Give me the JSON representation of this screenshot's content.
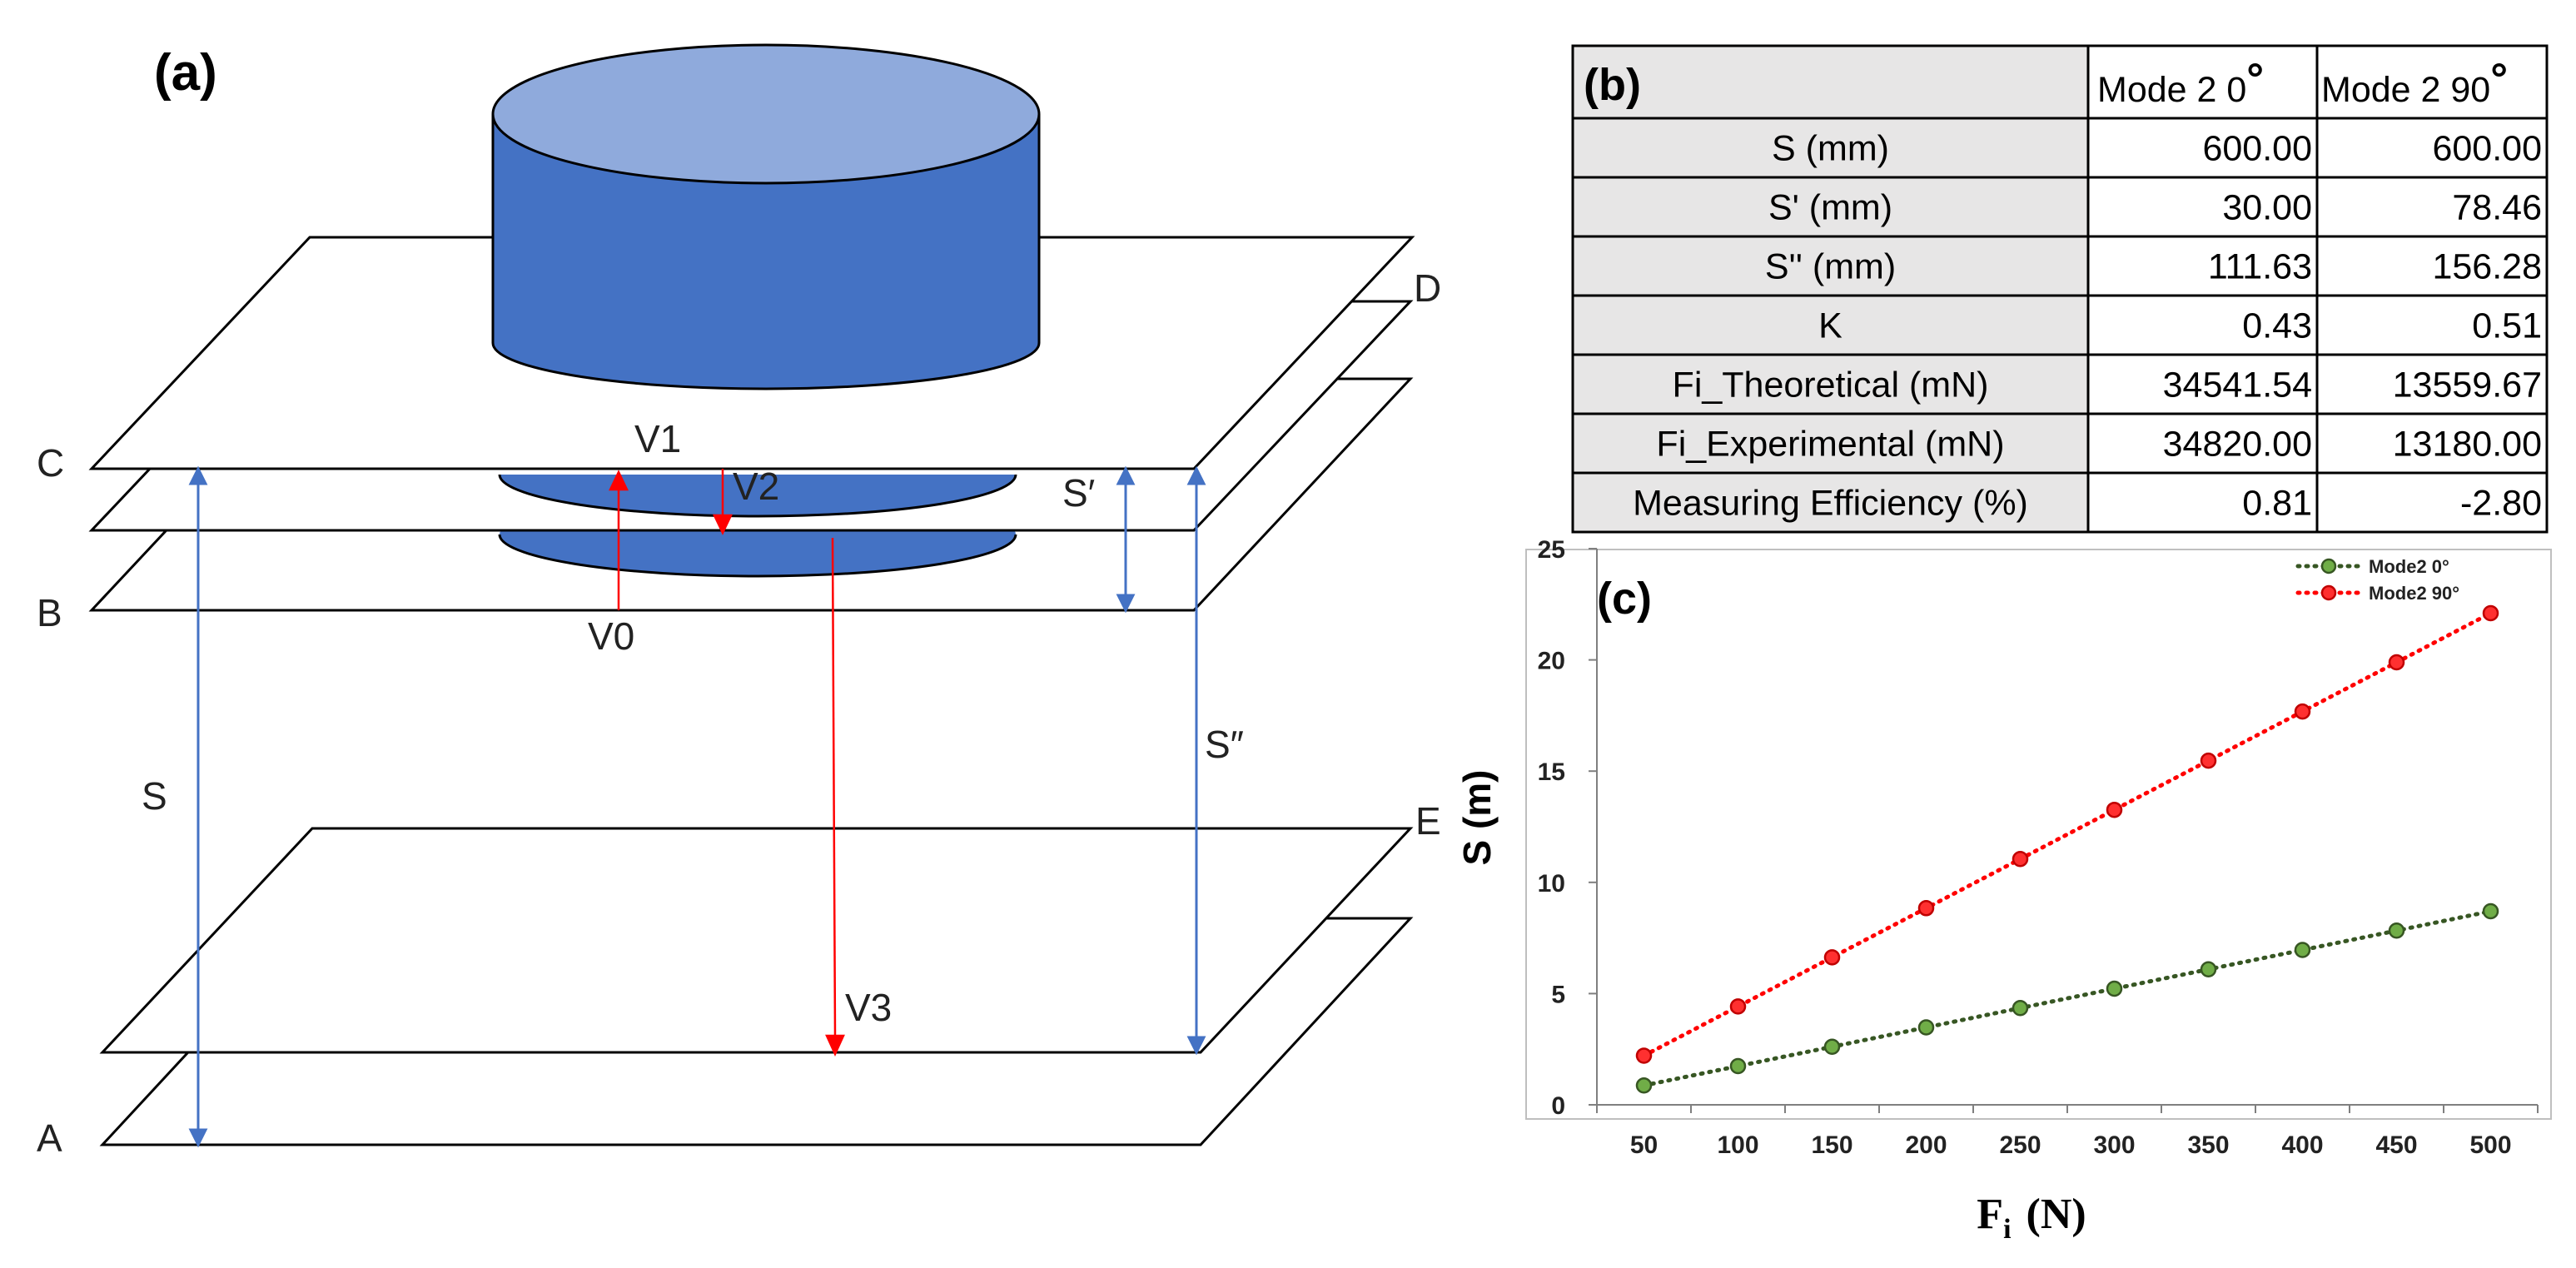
{
  "panel_a": {
    "label": "(a)",
    "plane_labels": {
      "A": "A",
      "B": "B",
      "C": "C",
      "D": "D",
      "E": "E"
    },
    "velocity_labels": {
      "v0": "V0",
      "v1": "V1",
      "v2": "V2",
      "v3": "V3"
    },
    "distance_labels": {
      "s": "S",
      "s_prime": "S′",
      "s_double_prime": "S″"
    },
    "colors": {
      "cylinder_top": "#8faadc",
      "cylinder_body": "#4472c4",
      "distance_arrow": "#4472c4",
      "velocity_arrow": "#ff0000",
      "plane_edge": "#000000"
    }
  },
  "panel_b": {
    "label": "(b)",
    "headers": [
      "Mode 2 0",
      "Mode 2 90"
    ],
    "degree_symbol": "°",
    "rows": [
      {
        "name": "S (mm)",
        "v1": "600.00",
        "v2": "600.00"
      },
      {
        "name": "S' (mm)",
        "v1": "30.00",
        "v2": "78.46"
      },
      {
        "name": "S'' (mm)",
        "v1": "111.63",
        "v2": "156.28"
      },
      {
        "name": "K",
        "v1": "0.43",
        "v2": "0.51"
      },
      {
        "name": "Fi_Theoretical (mN)",
        "v1": "34541.54",
        "v2": "13559.67"
      },
      {
        "name": "Fi_Experimental (mN)",
        "v1": "34820.00",
        "v2": "13180.00"
      },
      {
        "name": "Measuring Efficiency (%)",
        "v1": "0.81",
        "v2": "-2.80"
      }
    ],
    "colors": {
      "header_bg": "#e7e6e6",
      "label_bg": "#e7e6e6",
      "value_bg": "#ffffff",
      "border": "#000000"
    }
  },
  "panel_c": {
    "label": "(c)",
    "chart_data": {
      "type": "line",
      "title": "",
      "xlabel_main": "F",
      "xlabel_sub": "i",
      "xlabel_unit": "(N)",
      "ylabel": "S (m)",
      "x": [
        50,
        100,
        150,
        200,
        250,
        300,
        350,
        400,
        450,
        500
      ],
      "ylim": [
        0,
        25
      ],
      "yticks": [
        0,
        5,
        10,
        15,
        20,
        25
      ],
      "grid": false,
      "legend_position": "top-right",
      "series": [
        {
          "name": "Mode2 0°",
          "color": "#70ad47",
          "edge": "#375623",
          "line": "#375623",
          "values": [
            0.87,
            1.74,
            2.61,
            3.48,
            4.35,
            5.22,
            6.09,
            6.96,
            7.83,
            8.7
          ]
        },
        {
          "name": "Mode2 90°",
          "color": "#ff3030",
          "edge": "#c00000",
          "line": "#ff0000",
          "values": [
            2.21,
            4.42,
            6.63,
            8.84,
            11.05,
            13.26,
            15.47,
            17.68,
            19.89,
            22.1
          ]
        }
      ]
    }
  }
}
